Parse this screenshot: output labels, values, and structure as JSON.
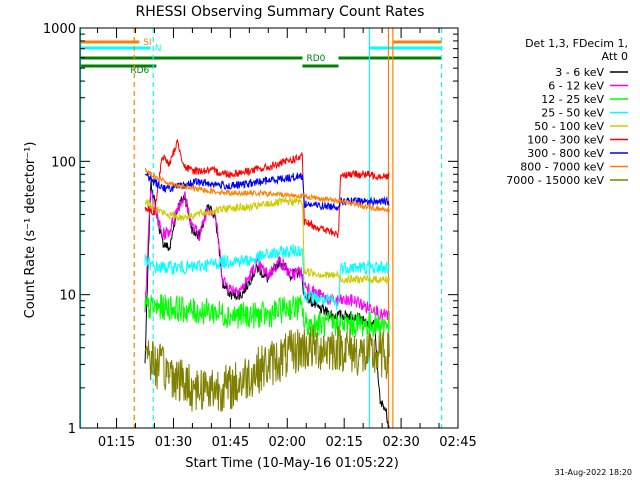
{
  "chart_data": {
    "type": "line",
    "title": "RHESSI Observing Summary Count Rates",
    "xlabel": "Start Time (10-May-16 01:05:22)",
    "ylabel": "Count Rate (s⁻¹ detector⁻¹)",
    "y_scale": "log",
    "ylim": [
      1,
      1000
    ],
    "xlim": [
      "01:05:22",
      "02:45:00"
    ],
    "x_tick_labels": [
      "01:15",
      "01:30",
      "01:45",
      "02:00",
      "02:15",
      "02:30",
      "02:45"
    ],
    "y_tick_labels": [
      "1",
      "10",
      "100",
      "1000"
    ],
    "footer": "31-Aug-2022 18:20",
    "legend": {
      "placement": "right",
      "header": [
        "Det 1,3, FDecim 1,",
        "Att 0"
      ],
      "entries": [
        {
          "label": "3 - 6 keV",
          "color": "#000000"
        },
        {
          "label": "6 - 12 keV",
          "color": "#ff00ff"
        },
        {
          "label": "12 - 25 keV",
          "color": "#00ff00"
        },
        {
          "label": "25 - 50 keV",
          "color": "#00ffff"
        },
        {
          "label": "50 - 100 keV",
          "color": "#cccc00"
        },
        {
          "label": "100 - 300 keV",
          "color": "#ff0000"
        },
        {
          "label": "300 - 800 keV",
          "color": "#0000ff"
        },
        {
          "label": "800 - 7000 keV",
          "color": "#ff8000"
        },
        {
          "label": "7000 - 15000 keV",
          "color": "#808000"
        }
      ]
    },
    "series": [
      {
        "name": "3 - 6 keV",
        "color": "#000000",
        "noise": 0.04,
        "x": [
          "01:22:30",
          "01:24:00",
          "01:27:00",
          "01:29:00",
          "01:31:00",
          "01:33:00",
          "01:35:00",
          "01:37:00",
          "01:39:00",
          "01:41:00",
          "01:43:00",
          "01:45:00",
          "01:48:00",
          "01:52:00",
          "01:55:00",
          "01:58:00",
          "02:01:00",
          "02:03:30",
          "02:04:30",
          "02:08:00",
          "02:12:00",
          "02:15:00",
          "02:18:00",
          "02:21:00",
          "02:23:00",
          "02:24:30",
          "02:25:30",
          "02:27:00"
        ],
        "y": [
          3,
          70,
          25,
          22,
          45,
          55,
          30,
          28,
          45,
          40,
          12,
          10,
          10,
          16,
          13,
          18,
          14,
          15,
          10,
          8,
          7,
          7,
          7,
          6,
          6,
          1.5,
          1.5,
          1
        ]
      },
      {
        "name": "6 - 12 keV",
        "color": "#ff00ff",
        "noise": 0.05,
        "x": [
          "01:22:30",
          "01:24:00",
          "01:27:00",
          "01:29:00",
          "01:31:00",
          "01:33:00",
          "01:35:00",
          "01:37:00",
          "01:39:00",
          "01:41:00",
          "01:43:00",
          "01:45:00",
          "01:48:00",
          "01:52:00",
          "01:55:00",
          "01:58:00",
          "02:01:00",
          "02:03:30",
          "02:04:30",
          "02:08:00",
          "02:12:00",
          "02:15:00",
          "02:18:00",
          "02:21:00",
          "02:23:00",
          "02:24:30",
          "02:27:00"
        ],
        "y": [
          8,
          60,
          28,
          30,
          45,
          55,
          32,
          28,
          45,
          42,
          13,
          11,
          11,
          17,
          14,
          18,
          14,
          15,
          12,
          10,
          9,
          9,
          9,
          8,
          8,
          7,
          7
        ]
      },
      {
        "name": "12 - 25 keV",
        "color": "#00ff00",
        "noise": 0.1,
        "x": [
          "01:22:30",
          "01:25:00",
          "01:30:00",
          "01:35:00",
          "01:40:00",
          "01:45:00",
          "01:50:00",
          "01:55:00",
          "02:00:00",
          "02:04:00",
          "02:04:30",
          "02:10:00",
          "02:15:00",
          "02:20:00",
          "02:25:00",
          "02:27:00"
        ],
        "y": [
          8,
          8,
          8,
          7.5,
          7.5,
          7,
          7,
          7,
          8,
          8,
          6,
          6,
          6,
          6,
          6,
          6
        ]
      },
      {
        "name": "25 - 50 keV",
        "color": "#00ffff",
        "noise": 0.05,
        "x": [
          "01:22:30",
          "01:25:00",
          "01:30:00",
          "01:35:00",
          "01:40:00",
          "01:45:00",
          "01:50:00",
          "01:55:00",
          "02:00:00",
          "02:04:00",
          "02:04:30",
          "02:10:00",
          "02:12:00",
          "02:13:30",
          "02:14:00",
          "02:18:00",
          "02:22:00",
          "02:27:00"
        ],
        "y": [
          18,
          16,
          16,
          16,
          17,
          18,
          18,
          20,
          21,
          22,
          10,
          9,
          9,
          8,
          16,
          16,
          16,
          16
        ]
      },
      {
        "name": "50 - 100 keV",
        "color": "#cccc00",
        "noise": 0.03,
        "x": [
          "01:22:30",
          "01:25:00",
          "01:28:00",
          "01:32:00",
          "01:36:00",
          "01:40:00",
          "01:45:00",
          "01:50:00",
          "01:55:00",
          "02:00:00",
          "02:04:00",
          "02:04:30",
          "02:10:00",
          "02:13:30",
          "02:14:00",
          "02:18:00",
          "02:22:00",
          "02:27:00"
        ],
        "y": [
          50,
          45,
          40,
          38,
          40,
          42,
          45,
          45,
          48,
          50,
          50,
          15,
          14,
          14,
          13,
          13,
          13,
          13
        ]
      },
      {
        "name": "100 - 300 keV",
        "color": "#ff0000",
        "noise": 0.03,
        "x": [
          "01:22:30",
          "01:25:00",
          "01:27:00",
          "01:29:00",
          "01:31:00",
          "01:33:00",
          "01:35:00",
          "01:40:00",
          "01:45:00",
          "01:50:00",
          "01:55:00",
          "02:00:00",
          "02:04:00",
          "02:04:30",
          "02:08:00",
          "02:13:30",
          "02:14:00",
          "02:20:00",
          "02:24:00",
          "02:27:00"
        ],
        "y": [
          45,
          40,
          110,
          95,
          140,
          90,
          85,
          85,
          80,
          85,
          90,
          100,
          108,
          35,
          32,
          28,
          80,
          80,
          78,
          78
        ]
      },
      {
        "name": "300 - 800 keV",
        "color": "#0000ff",
        "noise": 0.03,
        "x": [
          "01:22:30",
          "01:25:00",
          "01:28:00",
          "01:32:00",
          "01:36:00",
          "01:40:00",
          "01:45:00",
          "01:50:00",
          "01:55:00",
          "02:00:00",
          "02:04:00",
          "02:04:30",
          "02:10:00",
          "02:13:30",
          "02:14:00",
          "02:18:00",
          "02:22:00",
          "02:27:00"
        ],
        "y": [
          80,
          70,
          62,
          65,
          70,
          68,
          65,
          68,
          72,
          75,
          78,
          48,
          46,
          46,
          50,
          50,
          50,
          50
        ]
      },
      {
        "name": "800 - 7000 keV",
        "color": "#ff8000",
        "noise": 0.02,
        "x": [
          "01:22:30",
          "01:25:00",
          "01:28:00",
          "01:32:00",
          "01:36:00",
          "01:40:00",
          "01:45:00",
          "01:50:00",
          "01:55:00",
          "02:00:00",
          "02:04:00",
          "02:10:00",
          "02:15:00",
          "02:20:00",
          "02:24:00",
          "02:27:00"
        ],
        "y": [
          85,
          78,
          70,
          65,
          62,
          60,
          58,
          58,
          57,
          56,
          55,
          52,
          50,
          46,
          44,
          43
        ]
      },
      {
        "name": "7000 - 15000 keV",
        "color": "#808000",
        "noise": 0.18,
        "x": [
          "01:22:30",
          "01:25:00",
          "01:30:00",
          "01:35:00",
          "01:40:00",
          "01:45:00",
          "01:50:00",
          "01:55:00",
          "02:00:00",
          "02:04:00",
          "02:04:30",
          "02:10:00",
          "02:15:00",
          "02:20:00",
          "02:24:00",
          "02:27:00"
        ],
        "y": [
          4,
          3,
          2.5,
          2,
          2,
          2,
          2.5,
          3,
          3.5,
          4,
          4,
          4,
          4,
          3.5,
          3.5,
          3.5
        ]
      }
    ],
    "vertical_lines": [
      {
        "x": "01:05:30",
        "color": "#00ffff",
        "style": "solid"
      },
      {
        "x": "01:19:40",
        "color": "#ff8000",
        "style": "dashed"
      },
      {
        "x": "01:24:40",
        "color": "#00ffff",
        "style": "dashed"
      },
      {
        "x": "02:21:40",
        "color": "#00ffff",
        "style": "solid"
      },
      {
        "x": "02:26:40",
        "color": "#ff8000",
        "style": "solid"
      },
      {
        "x": "02:27:50",
        "color": "#ff8000",
        "style": "solid"
      },
      {
        "x": "02:40:40",
        "color": "#00ffff",
        "style": "dashed"
      }
    ],
    "flags": [
      {
        "label": "SI",
        "color": "#ff8000",
        "segments": [
          [
            "01:05:22",
            "01:21:00"
          ],
          [
            "02:27:50",
            "02:40:40"
          ]
        ]
      },
      {
        "label": "N",
        "color": "#00ffff",
        "segments": [
          [
            "01:05:22",
            "01:24:00"
          ],
          [
            "02:21:40",
            "02:40:40"
          ]
        ]
      },
      {
        "label": "RD0",
        "color": "#008000",
        "segments": [
          [
            "01:05:22",
            "02:04:00"
          ],
          [
            "02:13:30",
            "02:40:40"
          ]
        ]
      },
      {
        "label": "RD6",
        "color": "#008000",
        "segments": [
          [
            "01:05:22",
            "01:25:30"
          ],
          [
            "02:04:00",
            "02:13:30"
          ]
        ]
      }
    ]
  }
}
